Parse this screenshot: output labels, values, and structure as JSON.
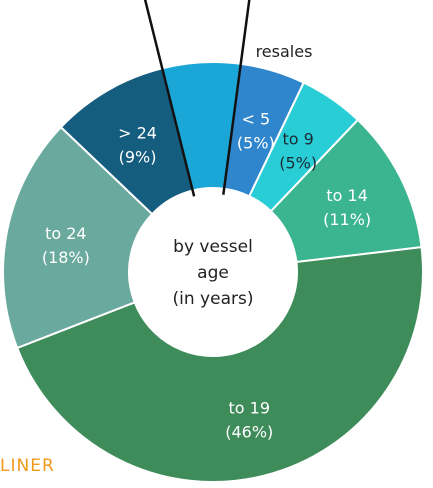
{
  "chart_data": {
    "type": "pie",
    "variant": "donut",
    "center_label_lines": [
      "by vessel",
      "age",
      "(in years)"
    ],
    "callout_label": "resales",
    "slices": [
      {
        "label": "resales",
        "value": 6,
        "value_label": "",
        "color": "#1aa7d8",
        "text_color": "#ffffff"
      },
      {
        "label": "< 5",
        "value": 5,
        "value_label": "(5%)",
        "color": "#2f86cc",
        "text_color": "#ffffff"
      },
      {
        "label": "to 9",
        "value": 5,
        "value_label": "(5%)",
        "color": "#29cdd6",
        "text_color": "#1b2a33"
      },
      {
        "label": "to 14",
        "value": 11,
        "value_label": "(11%)",
        "color": "#3bb58f",
        "text_color": "#ffffff"
      },
      {
        "label": "to 19",
        "value": 46,
        "value_label": "(46%)",
        "color": "#3e8c5a",
        "text_color": "#ffffff"
      },
      {
        "label": "to 24",
        "value": 18,
        "value_label": "(18%)",
        "color": "#6aa99e",
        "text_color": "#ffffff"
      },
      {
        "label": "> 24",
        "value": 9,
        "value_label": "(9%)",
        "color": "#155d7e",
        "text_color": "#ffffff"
      }
    ],
    "legend": "none"
  },
  "brand": {
    "text": "LINER",
    "color": "#f29a1a"
  }
}
